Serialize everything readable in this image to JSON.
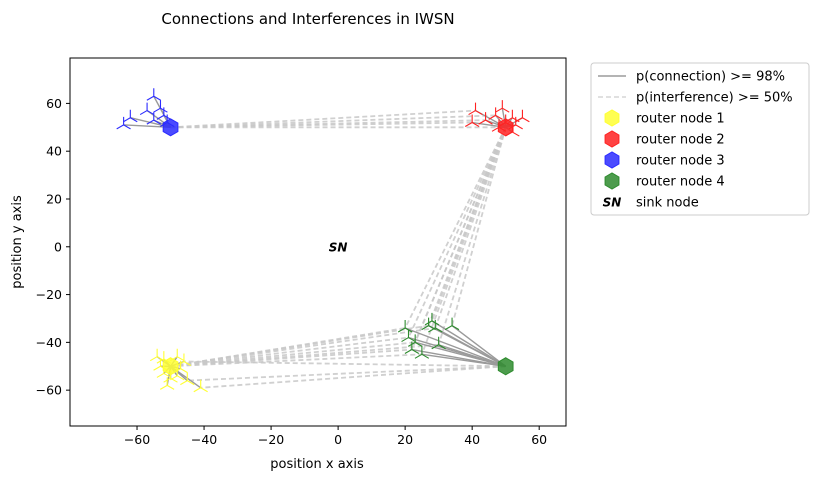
{
  "chart_data": {
    "type": "scatter",
    "title": "Connections and Interferences in IWSN",
    "xlabel": "position x axis",
    "ylabel": "position y axis",
    "xlim": [
      -80,
      68
    ],
    "ylim": [
      -75,
      79
    ],
    "xticks": [
      -60,
      -40,
      -20,
      0,
      20,
      40,
      60
    ],
    "yticks": [
      -60,
      -40,
      -20,
      0,
      20,
      40,
      60
    ],
    "grid": false,
    "legend_placement": "outside-upper-right",
    "legend": [
      {
        "label": "p(connection) >= 98%",
        "kind": "solid-line",
        "color": "#a9a9a9"
      },
      {
        "label": "p(interference) >= 50%",
        "kind": "dashed-line",
        "color": "#dcdcdc"
      },
      {
        "label": "router node 1",
        "kind": "hexagon",
        "color": "#ffff33"
      },
      {
        "label": "router node 2",
        "kind": "hexagon",
        "color": "#ff2222"
      },
      {
        "label": "router node 3",
        "kind": "hexagon",
        "color": "#2b2bff"
      },
      {
        "label": "router node 4",
        "kind": "hexagon",
        "color": "#2e8b2e"
      },
      {
        "label": "sink node",
        "kind": "text-marker",
        "marker_text": "SN",
        "color": "#000000"
      }
    ],
    "sink_node": {
      "x": 0,
      "y": 0,
      "marker_text": "SN"
    },
    "routers": [
      {
        "name": "router node 1",
        "color": "#ffff33",
        "router": {
          "x": -50,
          "y": -50
        },
        "sensors": [
          {
            "x": -54,
            "y": -46
          },
          {
            "x": -52,
            "y": -47
          },
          {
            "x": -48,
            "y": -46
          },
          {
            "x": -46,
            "y": -48
          },
          {
            "x": -53,
            "y": -50
          },
          {
            "x": -47,
            "y": -51
          },
          {
            "x": -52,
            "y": -53
          },
          {
            "x": -50,
            "y": -55
          },
          {
            "x": -48,
            "y": -54
          },
          {
            "x": -45,
            "y": -56
          },
          {
            "x": -51,
            "y": -58
          },
          {
            "x": -41,
            "y": -59
          }
        ]
      },
      {
        "name": "router node 2",
        "color": "#ff2222",
        "router": {
          "x": 50,
          "y": 50
        },
        "sensors": [
          {
            "x": 41,
            "y": 57
          },
          {
            "x": 44,
            "y": 53
          },
          {
            "x": 47,
            "y": 55
          },
          {
            "x": 49,
            "y": 58
          },
          {
            "x": 52,
            "y": 54
          },
          {
            "x": 53,
            "y": 51
          },
          {
            "x": 55,
            "y": 54
          },
          {
            "x": 48,
            "y": 50
          },
          {
            "x": 52,
            "y": 48
          },
          {
            "x": 40,
            "y": 52
          },
          {
            "x": 50,
            "y": 52
          }
        ]
      },
      {
        "name": "router node 3",
        "color": "#2b2bff",
        "router": {
          "x": -50,
          "y": 50
        },
        "sensors": [
          {
            "x": -64,
            "y": 51
          },
          {
            "x": -62,
            "y": 54
          },
          {
            "x": -57,
            "y": 57
          },
          {
            "x": -55,
            "y": 63
          },
          {
            "x": -53,
            "y": 58
          },
          {
            "x": -52,
            "y": 55
          },
          {
            "x": -55,
            "y": 53
          },
          {
            "x": -51,
            "y": 52
          }
        ]
      },
      {
        "name": "router node 4",
        "color": "#2e8b2e",
        "router": {
          "x": 50,
          "y": -50
        },
        "sensors": [
          {
            "x": 20,
            "y": -34
          },
          {
            "x": 21,
            "y": -38
          },
          {
            "x": 22,
            "y": -43
          },
          {
            "x": 25,
            "y": -45
          },
          {
            "x": 27,
            "y": -33
          },
          {
            "x": 29,
            "y": -34
          },
          {
            "x": 30,
            "y": -41
          },
          {
            "x": 34,
            "y": -33
          },
          {
            "x": 28,
            "y": -31
          },
          {
            "x": 23,
            "y": -40
          }
        ]
      }
    ],
    "interference_links": [
      {
        "from": [
          -50,
          50
        ],
        "to": [
          40,
          52
        ]
      },
      {
        "from": [
          -50,
          50
        ],
        "to": [
          41,
          57
        ]
      },
      {
        "from": [
          -50,
          50
        ],
        "to": [
          44,
          53
        ]
      },
      {
        "from": [
          -50,
          50
        ],
        "to": [
          48,
          50
        ]
      },
      {
        "from": [
          -50,
          50
        ],
        "to": [
          47,
          55
        ]
      },
      {
        "from": [
          50,
          50
        ],
        "to": [
          20,
          -34
        ]
      },
      {
        "from": [
          50,
          50
        ],
        "to": [
          21,
          -38
        ]
      },
      {
        "from": [
          50,
          50
        ],
        "to": [
          22,
          -43
        ]
      },
      {
        "from": [
          50,
          50
        ],
        "to": [
          25,
          -45
        ]
      },
      {
        "from": [
          50,
          50
        ],
        "to": [
          27,
          -33
        ]
      },
      {
        "from": [
          50,
          50
        ],
        "to": [
          29,
          -34
        ]
      },
      {
        "from": [
          50,
          50
        ],
        "to": [
          30,
          -41
        ]
      },
      {
        "from": [
          50,
          50
        ],
        "to": [
          34,
          -33
        ]
      },
      {
        "from": [
          50,
          50
        ],
        "to": [
          28,
          -31
        ]
      },
      {
        "from": [
          50,
          50
        ],
        "to": [
          23,
          -40
        ]
      },
      {
        "from": [
          -50,
          -50
        ],
        "to": [
          20,
          -34
        ]
      },
      {
        "from": [
          -50,
          -50
        ],
        "to": [
          21,
          -38
        ]
      },
      {
        "from": [
          -50,
          -50
        ],
        "to": [
          22,
          -43
        ]
      },
      {
        "from": [
          -50,
          -50
        ],
        "to": [
          25,
          -45
        ]
      },
      {
        "from": [
          -50,
          -50
        ],
        "to": [
          27,
          -33
        ]
      },
      {
        "from": [
          -50,
          -50
        ],
        "to": [
          29,
          -34
        ]
      },
      {
        "from": [
          -50,
          -50
        ],
        "to": [
          30,
          -41
        ]
      },
      {
        "from": [
          -50,
          -50
        ],
        "to": [
          23,
          -40
        ]
      },
      {
        "from": [
          50,
          -50
        ],
        "to": [
          -41,
          -59
        ]
      },
      {
        "from": [
          50,
          -50
        ],
        "to": [
          -45,
          -56
        ]
      },
      {
        "from": [
          50,
          -50
        ],
        "to": [
          -46,
          -48
        ]
      }
    ]
  }
}
